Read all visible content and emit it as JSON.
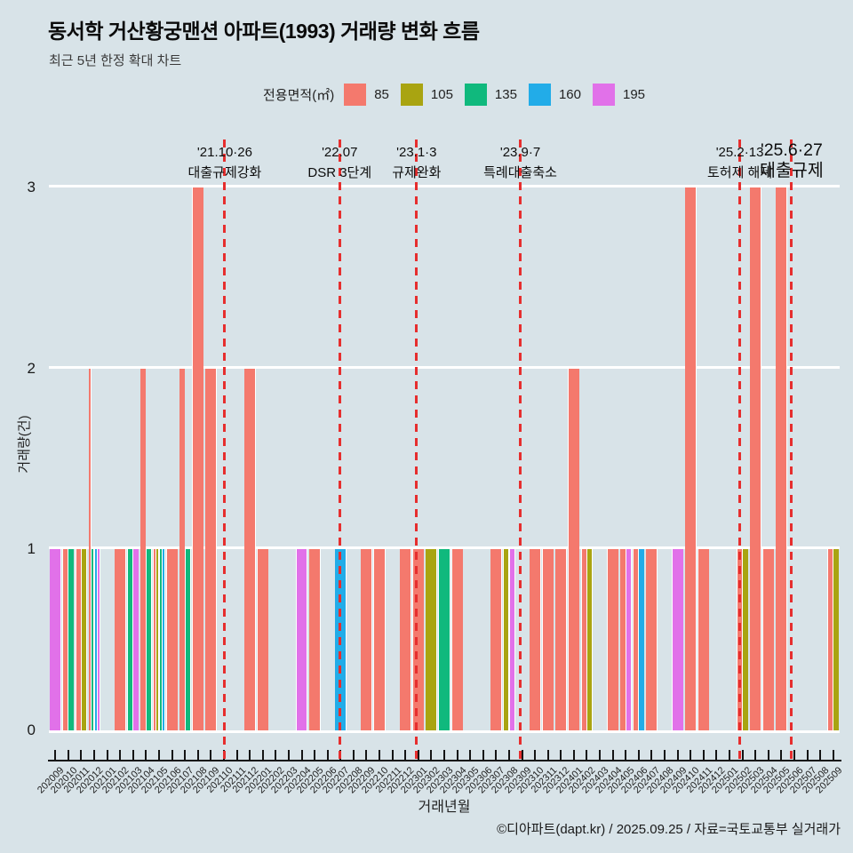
{
  "header": {
    "title": "동서학 거산황궁맨션 아파트(1993) 거래량 변화 흐름",
    "subtitle": "최근 5년 한정 확대 차트"
  },
  "legend": {
    "label": "전용면적(㎡)"
  },
  "chart_data": {
    "type": "bar",
    "title": "동서학 거산황궁맨션 아파트(1993) 거래량 변화 흐름",
    "xlabel": "거래년월",
    "ylabel": "거래량(건)",
    "ylim": [
      0,
      3
    ],
    "yticks": [
      0,
      1,
      2,
      3
    ],
    "grid": "horizontal-white",
    "legend_position": "top",
    "series": [
      {
        "name": "85",
        "color": "#f4796d"
      },
      {
        "name": "105",
        "color": "#a9a411"
      },
      {
        "name": "135",
        "color": "#10b97d"
      },
      {
        "name": "160",
        "color": "#22ace8"
      },
      {
        "name": "195",
        "color": "#e171e9"
      }
    ],
    "months": [
      "202009",
      "202010",
      "202011",
      "202012",
      "202101",
      "202102",
      "202103",
      "202104",
      "202105",
      "202106",
      "202107",
      "202108",
      "202109",
      "202110",
      "202111",
      "202112",
      "202201",
      "202202",
      "202203",
      "202204",
      "202205",
      "202206",
      "202207",
      "202208",
      "202209",
      "202210",
      "202211",
      "202212",
      "202301",
      "202302",
      "202303",
      "202304",
      "202305",
      "202306",
      "202307",
      "202308",
      "202309",
      "202310",
      "202311",
      "202312",
      "202401",
      "202402",
      "202403",
      "202404",
      "202405",
      "202406",
      "202407",
      "202408",
      "202409",
      "202410",
      "202411",
      "202412",
      "202501",
      "202502",
      "202503",
      "202504",
      "202505",
      "202506",
      "202507",
      "202508",
      "202509"
    ],
    "transactions": {
      "202009": [
        [
          "195",
          1
        ]
      ],
      "202010": [
        [
          "85",
          1
        ],
        [
          "135",
          1
        ]
      ],
      "202011": [
        [
          "85",
          1
        ],
        [
          "105",
          1
        ]
      ],
      "202012": [
        [
          "85",
          2
        ],
        [
          "135",
          1
        ],
        [
          "160",
          1
        ],
        [
          "195",
          1
        ]
      ],
      "202102": [
        [
          "85",
          1
        ]
      ],
      "202103": [
        [
          "135",
          1
        ],
        [
          "195",
          1
        ]
      ],
      "202104": [
        [
          "85",
          2
        ],
        [
          "135",
          1
        ]
      ],
      "202105": [
        [
          "85",
          1
        ],
        [
          "105",
          1
        ],
        [
          "135",
          1
        ],
        [
          "160",
          1
        ]
      ],
      "202106": [
        [
          "85",
          1
        ]
      ],
      "202107": [
        [
          "85",
          2
        ],
        [
          "135",
          1
        ]
      ],
      "202108": [
        [
          "85",
          3
        ]
      ],
      "202109": [
        [
          "85",
          2
        ]
      ],
      "202112": [
        [
          "85",
          2
        ]
      ],
      "202201": [
        [
          "85",
          1
        ]
      ],
      "202204": [
        [
          "195",
          1
        ]
      ],
      "202205": [
        [
          "85",
          1
        ]
      ],
      "202207": [
        [
          "160",
          1
        ]
      ],
      "202209": [
        [
          "85",
          1
        ]
      ],
      "202210": [
        [
          "85",
          1
        ]
      ],
      "202212": [
        [
          "85",
          1
        ]
      ],
      "202301": [
        [
          "85",
          1
        ]
      ],
      "202302": [
        [
          "105",
          1
        ]
      ],
      "202303": [
        [
          "135",
          1
        ]
      ],
      "202304": [
        [
          "85",
          1
        ]
      ],
      "202307": [
        [
          "85",
          1
        ]
      ],
      "202308": [
        [
          "105",
          1
        ],
        [
          "195",
          1
        ]
      ],
      "202310": [
        [
          "85",
          1
        ]
      ],
      "202311": [
        [
          "85",
          1
        ]
      ],
      "202312": [
        [
          "85",
          1
        ]
      ],
      "202401": [
        [
          "85",
          2
        ]
      ],
      "202402": [
        [
          "85",
          1
        ],
        [
          "105",
          1
        ]
      ],
      "202404": [
        [
          "85",
          1
        ]
      ],
      "202405": [
        [
          "85",
          1
        ],
        [
          "195",
          1
        ]
      ],
      "202406": [
        [
          "85",
          1
        ],
        [
          "160",
          1
        ]
      ],
      "202407": [
        [
          "85",
          1
        ]
      ],
      "202409": [
        [
          "195",
          1
        ]
      ],
      "202410": [
        [
          "85",
          3
        ]
      ],
      "202411": [
        [
          "85",
          1
        ]
      ],
      "202502": [
        [
          "85",
          1
        ],
        [
          "105",
          1
        ]
      ],
      "202503": [
        [
          "85",
          3
        ]
      ],
      "202504": [
        [
          "85",
          1
        ]
      ],
      "202505": [
        [
          "85",
          3
        ]
      ],
      "202509": [
        [
          "85",
          1
        ],
        [
          "105",
          1
        ]
      ]
    },
    "events": [
      {
        "date": "'21.10·26",
        "label": "대출규제강화",
        "month": "202110",
        "dx": 1,
        "large": false
      },
      {
        "date": "'22.07",
        "label": "DSR 3단계",
        "month": "202207",
        "dx": -1,
        "large": false
      },
      {
        "date": "'23.1·3",
        "label": "규제완화",
        "month": "202301",
        "dx": -2,
        "large": false
      },
      {
        "date": "'23.9·7",
        "label": "특례대출축소",
        "month": "202309",
        "dx": -2,
        "large": false
      },
      {
        "date": "'25.2·13",
        "label": "토허제 해제",
        "month": "202502",
        "dx": -3,
        "large": false
      },
      {
        "date": "'25.6·27",
        "label": "대출규제",
        "month": "202506",
        "dx": -3,
        "large": true
      }
    ],
    "event_line_color": "#e62e2e"
  },
  "footer": {
    "credit": "©디아파트(dapt.kr) / 2025.09.25 / 자료=국토교통부 실거래가"
  }
}
